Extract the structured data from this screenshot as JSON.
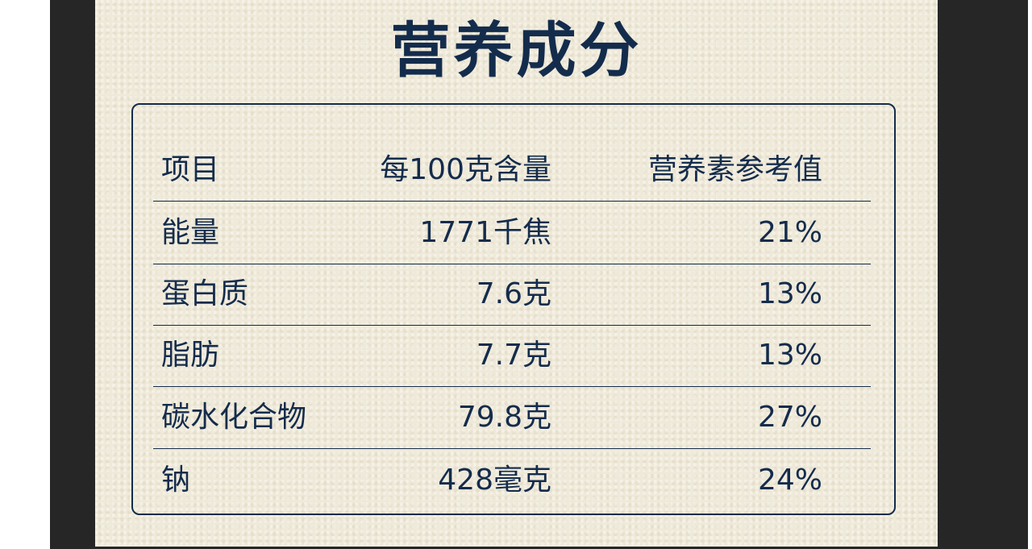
{
  "title": "营养成分",
  "table": {
    "headers": [
      "项目",
      "每100克含量",
      "营养素参考值"
    ],
    "rows": [
      {
        "name": "能量",
        "amount": "1771千焦",
        "nrv": "21%"
      },
      {
        "name": "蛋白质",
        "amount": "7.6克",
        "nrv": "13%"
      },
      {
        "name": "脂肪",
        "amount": "7.7克",
        "nrv": "13%"
      },
      {
        "name": "碳水化合物",
        "amount": "79.8克",
        "nrv": "27%"
      },
      {
        "name": "钠",
        "amount": "428毫克",
        "nrv": "24%"
      }
    ]
  },
  "colors": {
    "text": "#142c4c",
    "background": "#efe9d9",
    "frame": "#262626"
  }
}
